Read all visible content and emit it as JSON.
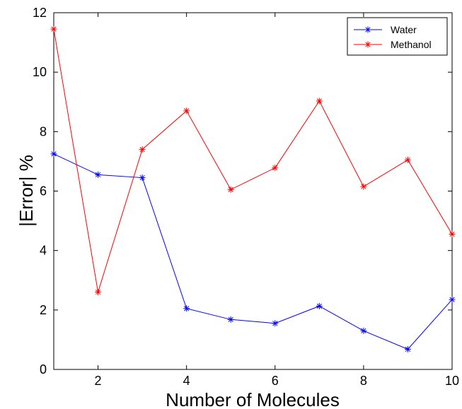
{
  "chart_data": {
    "type": "line",
    "xlabel": "Number of Molecules",
    "ylabel": "|Error| %",
    "xlim": [
      1,
      10
    ],
    "ylim": [
      0,
      12
    ],
    "x_ticks": [
      2,
      4,
      6,
      8,
      10
    ],
    "y_ticks": [
      0,
      2,
      4,
      6,
      8,
      10,
      12
    ],
    "grid": false,
    "legend_position": "top-right",
    "x": [
      1,
      2,
      3,
      4,
      5,
      6,
      7,
      8,
      9,
      10
    ],
    "series": [
      {
        "name": "Water",
        "color": "#0000ff",
        "marker": "asterisk",
        "values": [
          7.25,
          6.55,
          6.45,
          2.05,
          1.68,
          1.55,
          2.13,
          1.3,
          0.68,
          2.35
        ]
      },
      {
        "name": "Methanol",
        "color": "#ff0000",
        "marker": "asterisk",
        "values": [
          11.45,
          2.6,
          7.4,
          8.7,
          6.05,
          6.78,
          9.03,
          6.15,
          7.05,
          4.55
        ]
      }
    ]
  }
}
